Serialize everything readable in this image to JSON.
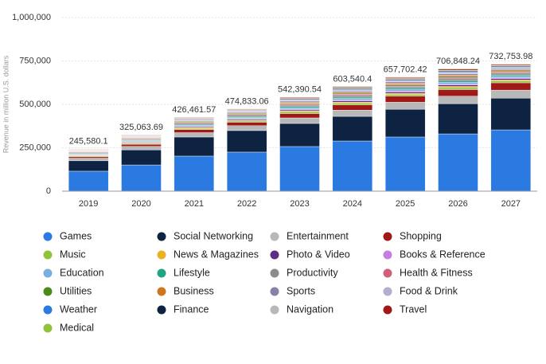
{
  "chart_data": {
    "type": "stacked_bar",
    "y_label": "Revenue in million U.S. dollars",
    "categories": [
      "2019",
      "2020",
      "2021",
      "2022",
      "2023",
      "2024",
      "2025",
      "2026",
      "2027"
    ],
    "series": [
      {
        "name": "Games",
        "color": "#2a7ae2",
        "values": [
          115000,
          151000,
          202000,
          225000,
          257000,
          289000,
          312000,
          330000,
          353000
        ]
      },
      {
        "name": "Social Networking",
        "color": "#0e2341",
        "values": [
          60000,
          87000,
          110000,
          124000,
          133000,
          142000,
          160000,
          174000,
          183000
        ]
      },
      {
        "name": "Entertainment",
        "color": "#b8b8b8",
        "values": [
          15000,
          20000,
          25000,
          28000,
          32000,
          36000,
          40000,
          43000,
          46000
        ]
      },
      {
        "name": "Shopping",
        "color": "#a01818",
        "values": [
          8000,
          12000,
          18000,
          20000,
          25000,
          30000,
          35000,
          38000,
          42000
        ]
      },
      {
        "name": "Music",
        "color": "#8fc43a",
        "values": [
          4280,
          4960,
          6440,
          7000,
          8590,
          9590,
          9960,
          10960,
          9790
        ]
      },
      {
        "name": "News & Magazines",
        "color": "#e8b320",
        "values": [
          2860,
          3310,
          4290,
          4670,
          5720,
          6390,
          6640,
          7310,
          6530
        ]
      },
      {
        "name": "Photo & Video",
        "color": "#5c2d82",
        "values": [
          3330,
          3860,
          5010,
          5450,
          6680,
          7460,
          7750,
          8530,
          7620
        ]
      },
      {
        "name": "Books & Reference",
        "color": "#c77ce0",
        "values": [
          2380,
          2760,
          3580,
          3890,
          4770,
          5330,
          5540,
          6090,
          5440
        ]
      },
      {
        "name": "Education",
        "color": "#7aaee0",
        "values": [
          3810,
          4410,
          5720,
          6220,
          7630,
          8520,
          8860,
          9740,
          8700
        ]
      },
      {
        "name": "Lifestyle",
        "color": "#1fa583",
        "values": [
          3330,
          3860,
          5010,
          5450,
          6680,
          7460,
          7750,
          8530,
          7620
        ]
      },
      {
        "name": "Productivity",
        "color": "#8c8c8c",
        "values": [
          4280,
          4960,
          6440,
          7000,
          8590,
          9590,
          9960,
          10960,
          9790
        ]
      },
      {
        "name": "Health & Fitness",
        "color": "#d0607a",
        "values": [
          3330,
          3860,
          5010,
          5450,
          6680,
          7460,
          7750,
          8530,
          7620
        ]
      },
      {
        "name": "Utilities",
        "color": "#4a8a1a",
        "values": [
          2380,
          2760,
          3580,
          3890,
          4770,
          5330,
          5540,
          6090,
          5440
        ]
      },
      {
        "name": "Business",
        "color": "#d0761e",
        "values": [
          2860,
          3310,
          4290,
          4670,
          5720,
          6390,
          6640,
          7310,
          6530
        ]
      },
      {
        "name": "Sports",
        "color": "#8b80a8",
        "values": [
          2860,
          3310,
          4290,
          4670,
          5720,
          6390,
          6640,
          7310,
          6530
        ]
      },
      {
        "name": "Food & Drink",
        "color": "#b3aed0",
        "values": [
          2380,
          2760,
          3580,
          3890,
          4770,
          5330,
          5540,
          6090,
          5440
        ]
      },
      {
        "name": "Weather",
        "color": "#2a7ae2",
        "values": [
          1430,
          1650,
          2150,
          2330,
          2860,
          3200,
          3320,
          3650,
          3260
        ]
      },
      {
        "name": "Finance",
        "color": "#0e2341",
        "values": [
          2380,
          2760,
          3580,
          3890,
          4770,
          5330,
          5540,
          6090,
          5440
        ]
      },
      {
        "name": "Navigation",
        "color": "#b8b8b8",
        "values": [
          1900,
          2200,
          2860,
          3110,
          3820,
          4260,
          4430,
          4870,
          4350
        ]
      },
      {
        "name": "Travel",
        "color": "#a01818",
        "values": [
          2380,
          2760,
          3580,
          3890,
          4770,
          5330,
          5540,
          6090,
          5440
        ]
      },
      {
        "name": "Medical",
        "color": "#8fc43a",
        "values": [
          1430,
          1650,
          2150,
          2330,
          2860,
          3200,
          3320,
          3650,
          3260
        ]
      }
    ],
    "totals": {
      "values": [
        245580.1,
        325063.69,
        426461.57,
        474833.06,
        542390.54,
        603540.4,
        657702.42,
        706848.24,
        732753.98
      ],
      "value_labels": [
        "245,580.1",
        "325,063.69",
        "426,461.57",
        "474,833.06",
        "542,390.54",
        "603,540.4",
        "657,702.42",
        "706,848.24",
        "732,753.98"
      ]
    },
    "ylim": [
      0,
      1000000
    ],
    "yticks": [
      0,
      {
        "value": 250000,
        "label": "250,000"
      },
      {
        "value": 500000,
        "label": "500,000"
      },
      {
        "value": 750000,
        "label": "750,000"
      },
      {
        "value": 1000000,
        "label": "1,000,000"
      }
    ],
    "grid": true,
    "legend": "bottom"
  }
}
